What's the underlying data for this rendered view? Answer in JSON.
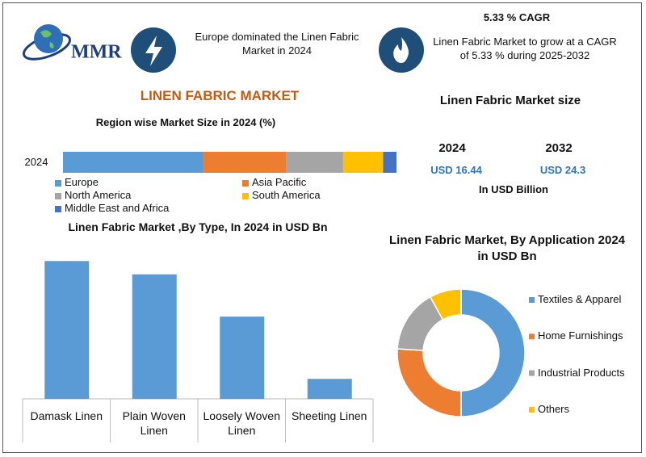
{
  "header": {
    "logo": "MMR",
    "cagr_title": "5.33 % CAGR",
    "left_note": "Europe dominated the Linen Fabric Market in 2024",
    "right_note": "Linen Fabric Market to grow at a CAGR of 5.33 % during 2025-2032",
    "title": "LINEN FABRIC MARKET"
  },
  "market_size": {
    "title": "Linen Fabric Market size",
    "years": [
      "2024",
      "2032"
    ],
    "values": [
      "USD 16.44",
      "USD 24.3"
    ],
    "unit": "In USD Billion"
  },
  "chart_data": [
    {
      "type": "stacked-bar-horizontal",
      "title": "Region wise Market Size in 2024 (%)",
      "categories": [
        "2024"
      ],
      "xlim": [
        0,
        100
      ],
      "series": [
        {
          "name": "Europe",
          "color": "#5b9bd5",
          "values": [
            42
          ]
        },
        {
          "name": "Asia Pacific",
          "color": "#ed7d31",
          "values": [
            25
          ]
        },
        {
          "name": "North America",
          "color": "#a5a5a5",
          "values": [
            17
          ]
        },
        {
          "name": "South America",
          "color": "#ffc000",
          "values": [
            12
          ]
        },
        {
          "name": "Middle East and Africa",
          "color": "#4472c4",
          "values": [
            4
          ]
        }
      ]
    },
    {
      "type": "bar",
      "title": "Linen Fabric Market ,By  Type, In 2024 in USD Bn",
      "categories": [
        "Damask Linen",
        "Plain Woven Linen",
        "Loosely Woven Linen",
        "Sheeting Linen"
      ],
      "values": [
        6.2,
        5.6,
        3.7,
        0.9
      ],
      "color": "#5b9bd5",
      "ylim": [
        0,
        6.5
      ]
    },
    {
      "type": "donut",
      "title": "Linen Fabric Market, By Application 2024 in USD Bn",
      "categories": [
        "Textiles & Apparel",
        "Home Furnishings",
        "Industrial Products",
        "Others"
      ],
      "values": [
        50,
        26,
        16,
        8
      ],
      "colors": [
        "#5b9bd5",
        "#ed7d31",
        "#a5a5a5",
        "#ffc000"
      ]
    }
  ]
}
